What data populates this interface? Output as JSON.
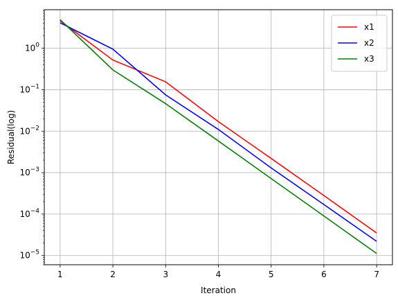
{
  "chart_data": {
    "type": "line",
    "title": "",
    "xlabel": "Iteration",
    "ylabel": "Residual(log)",
    "x": [
      1,
      2,
      3,
      4,
      5,
      6,
      7
    ],
    "xlim": [
      0.7,
      7.3
    ],
    "ylim": [
      6e-06,
      8.5
    ],
    "yscale": "log",
    "xticks": [
      "1",
      "2",
      "3",
      "4",
      "5",
      "6",
      "7"
    ],
    "yticks": [
      {
        "value": 1e-05,
        "base": "10",
        "exp": "−5"
      },
      {
        "value": 0.0001,
        "base": "10",
        "exp": "−4"
      },
      {
        "value": 0.001,
        "base": "10",
        "exp": "−3"
      },
      {
        "value": 0.01,
        "base": "10",
        "exp": "−2"
      },
      {
        "value": 0.1,
        "base": "10",
        "exp": "−1"
      },
      {
        "value": 1,
        "base": "10",
        "exp": "0"
      }
    ],
    "grid": true,
    "legend_position": "top-right",
    "series": [
      {
        "name": "x1",
        "color": "#ff0000",
        "values": [
          4.6,
          0.52,
          0.155,
          0.017,
          0.0022,
          0.00028,
          3.5e-05
        ]
      },
      {
        "name": "x2",
        "color": "#0000ff",
        "values": [
          4.1,
          0.95,
          0.075,
          0.011,
          0.0013,
          0.00017,
          2.2e-05
        ]
      },
      {
        "name": "x3",
        "color": "#008000",
        "values": [
          4.9,
          0.3,
          0.046,
          0.0058,
          0.00072,
          9e-05,
          1.12e-05
        ]
      }
    ]
  }
}
